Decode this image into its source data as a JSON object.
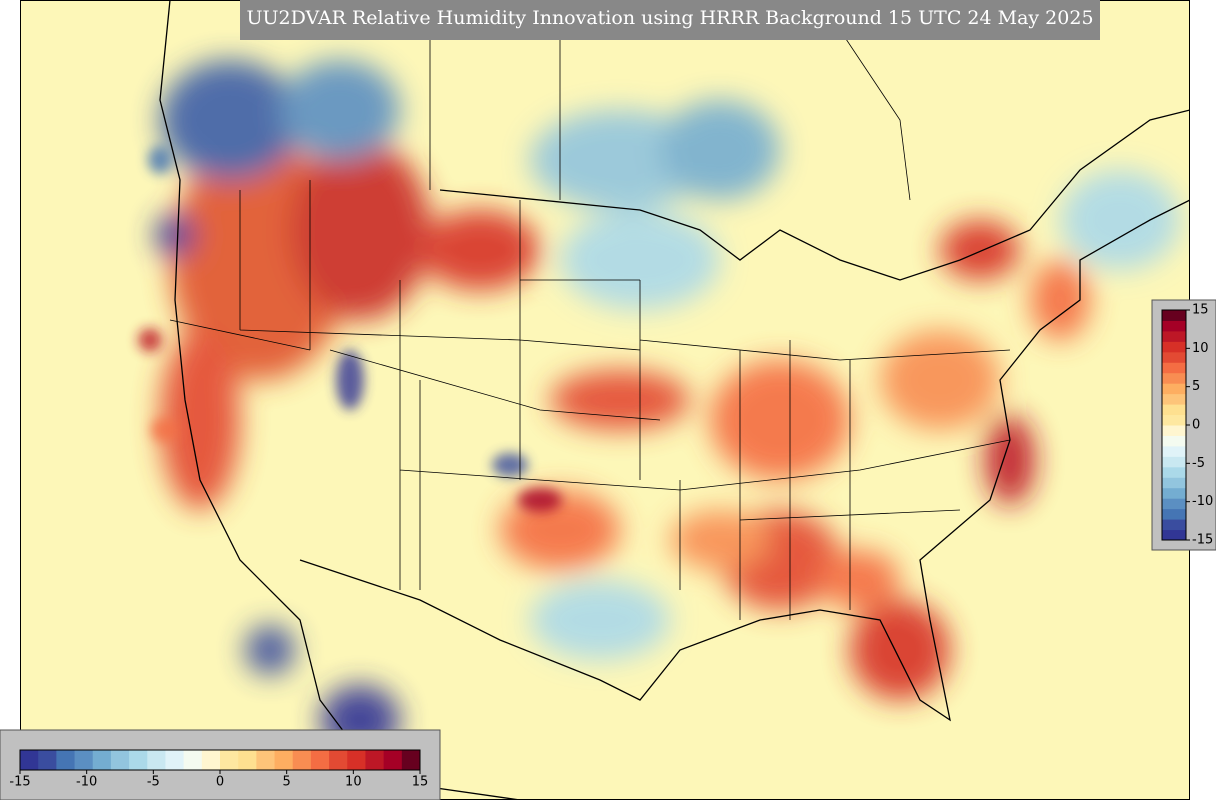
{
  "title": "UU2DVAR Relative Humidity Innovation using HRRR Background 15 UTC 24 May 2025",
  "colorbar": {
    "lim": [
      -15,
      15
    ],
    "ticks": [
      -15,
      -10,
      -5,
      0,
      5,
      10,
      15
    ],
    "colors": [
      "#313695",
      "#3a4d9f",
      "#4575b4",
      "#5b8fc2",
      "#74add1",
      "#92c5de",
      "#abd9e9",
      "#c9e8f1",
      "#e0f3f8",
      "#f4fbf0",
      "#fff6d0",
      "#fee8a0",
      "#fee090",
      "#fdc479",
      "#fdae61",
      "#f88d52",
      "#f46d43",
      "#e34a33",
      "#d73027",
      "#bd1726",
      "#a50026",
      "#67001f"
    ]
  }
}
